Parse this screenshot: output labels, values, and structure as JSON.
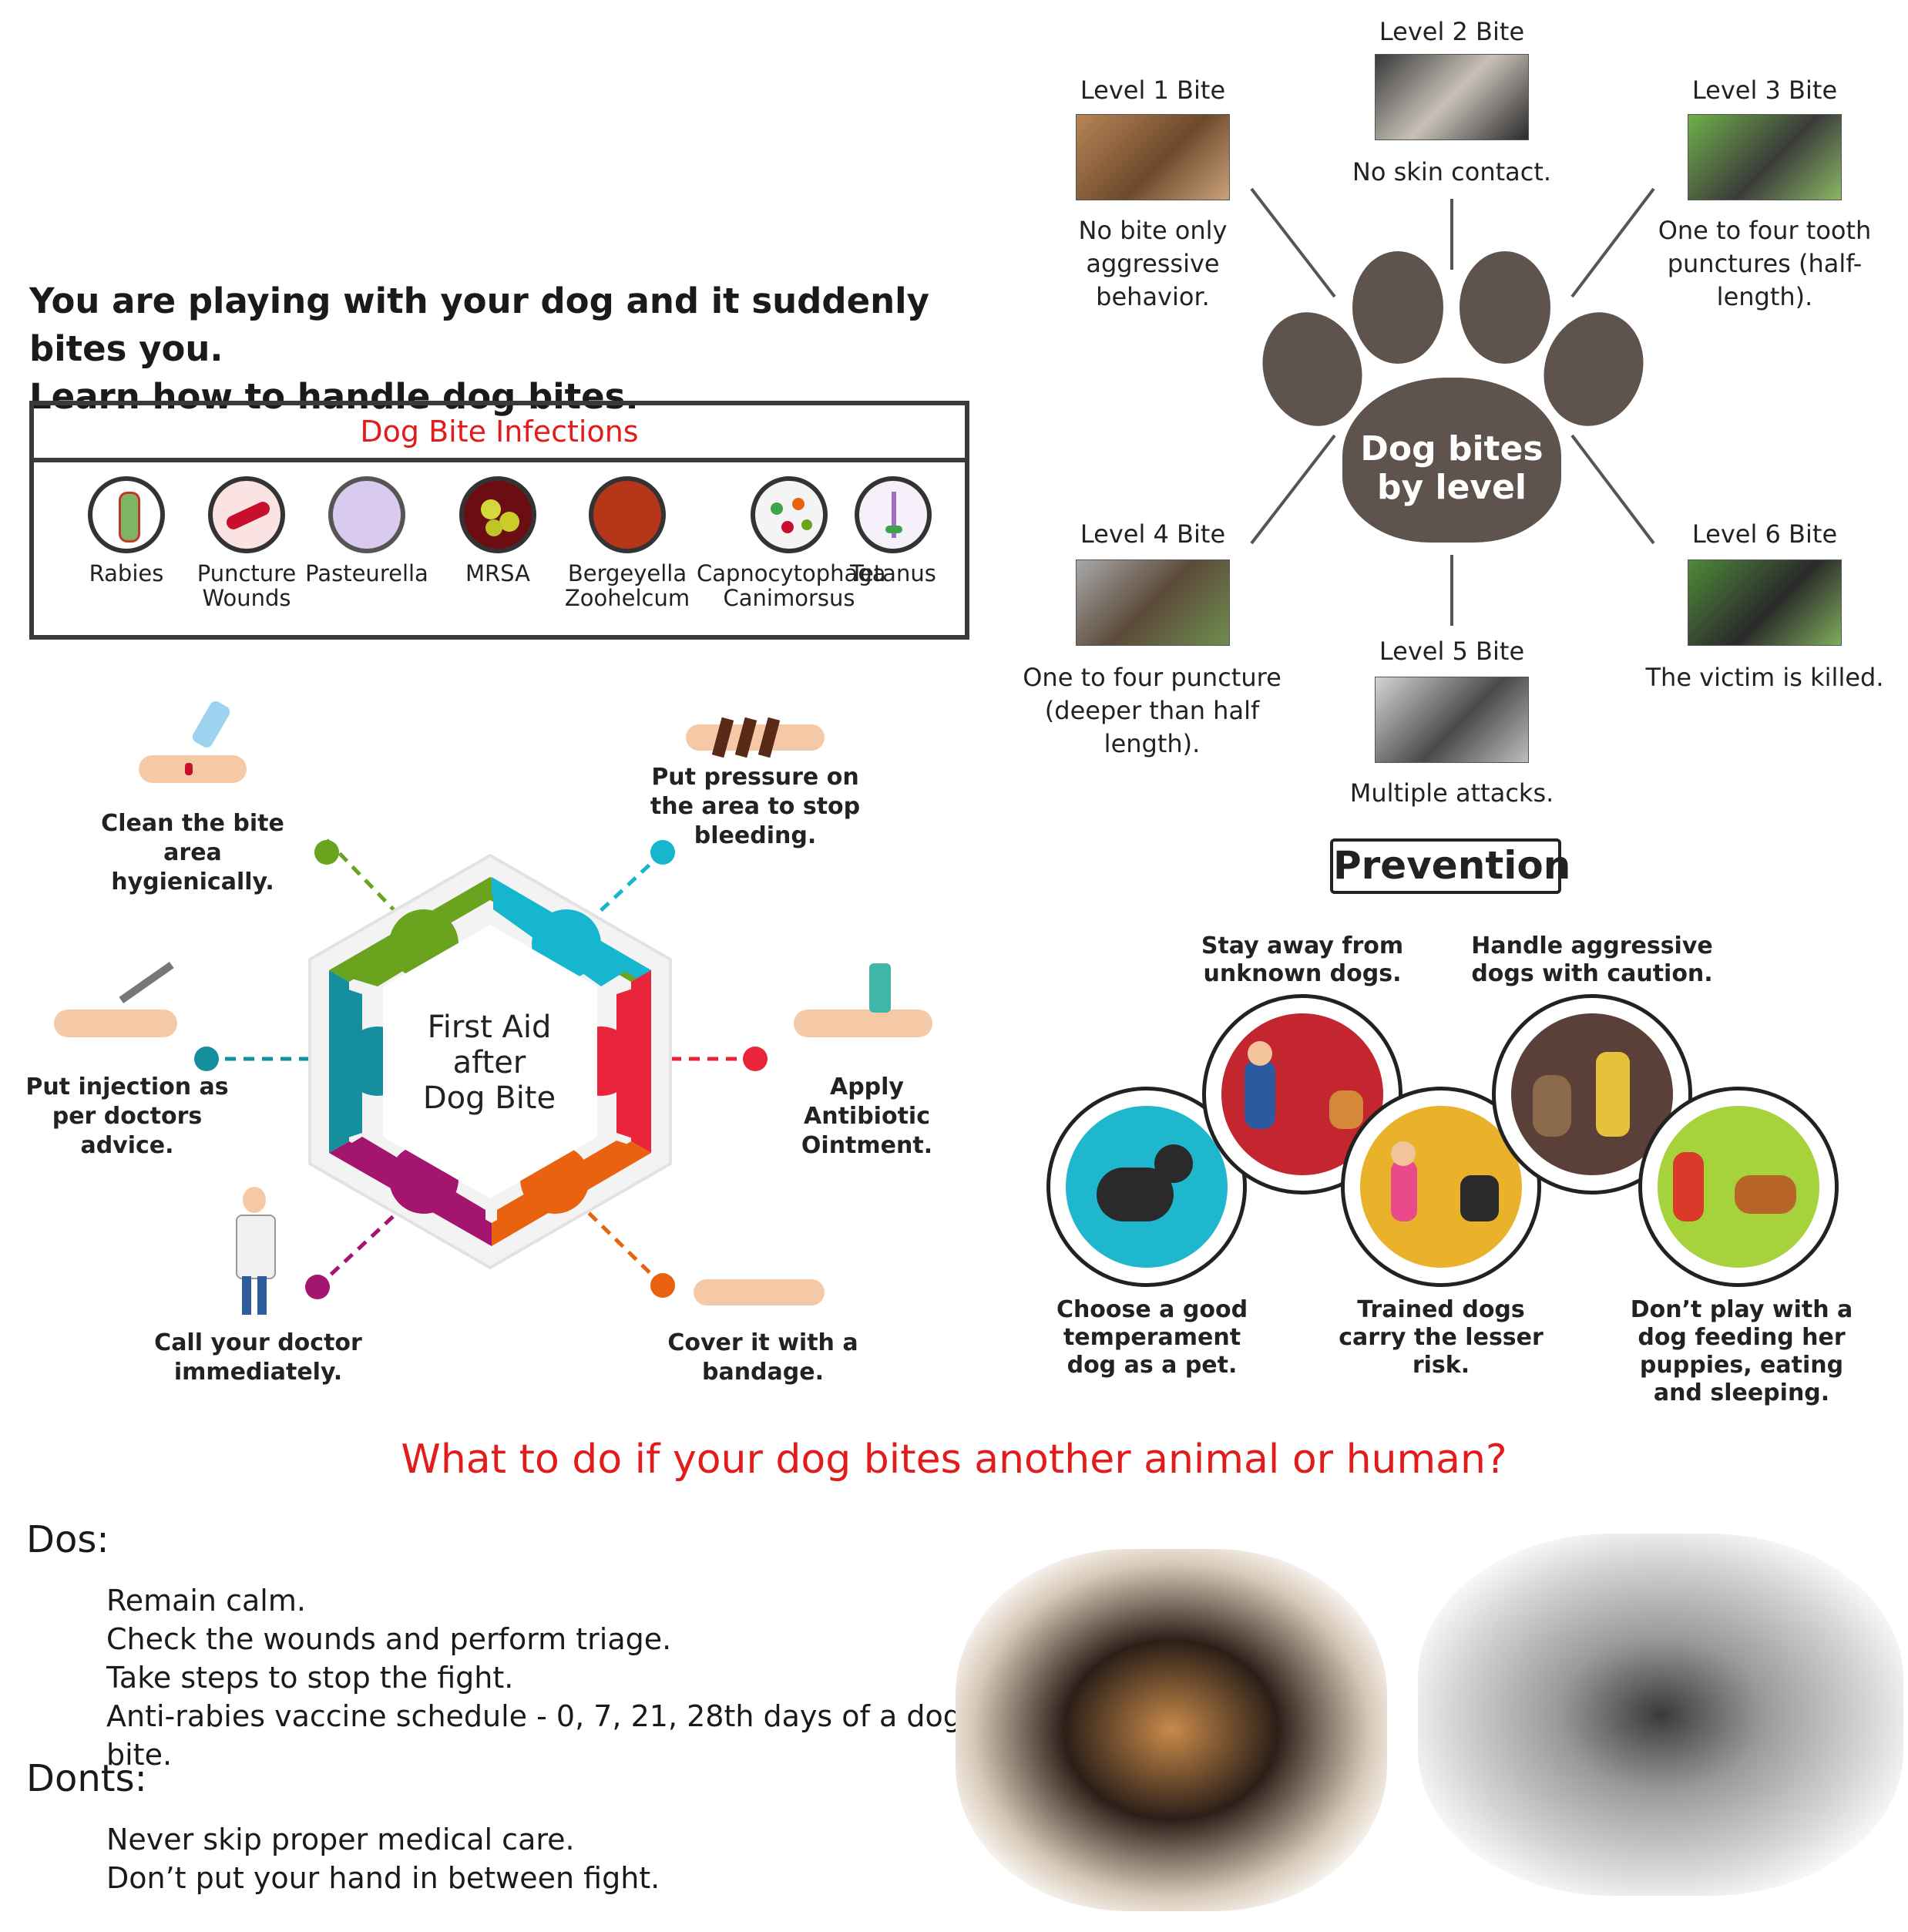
{
  "intro": {
    "line1": "You are playing with your dog and it suddenly bites you.",
    "line2": "Learn how to handle dog bites."
  },
  "infections": {
    "title": "Dog Bite Infections",
    "items": [
      {
        "label1": "Rabies",
        "label2": "",
        "icon": "rabies-virus-icon",
        "color": "#8fbf6a"
      },
      {
        "label1": "Puncture",
        "label2": "Wounds",
        "icon": "puncture-wound-icon",
        "color": "#c8102e"
      },
      {
        "label1": "Pasteurella",
        "label2": "",
        "icon": "pasteurella-icon",
        "color": "#c9b8e0"
      },
      {
        "label1": "MRSA",
        "label2": "",
        "icon": "mrsa-icon",
        "color": "#c8d424"
      },
      {
        "label1": "Bergeyella",
        "label2": "Zoohelcum",
        "icon": "bergeyella-icon",
        "color": "#b6361a"
      },
      {
        "label1": "Capnocytophaga",
        "label2": "Canimorsus",
        "icon": "capnocytophaga-icon",
        "color": "#3fa34d"
      },
      {
        "label1": "Tetanus",
        "label2": "",
        "icon": "tetanus-icon",
        "color": "#a070c0"
      }
    ]
  },
  "first_aid": {
    "center_line1": "First Aid",
    "center_line2": "after",
    "center_line3": "Dog Bite",
    "steps": {
      "clean": "Clean the bite area hygienically.",
      "pressure": "Put pressure on the area to stop bleeding.",
      "ointment": "Apply Antibiotic Ointment.",
      "bandage": "Cover it with a bandage.",
      "doctor": "Call your doctor immediately.",
      "injection": "Put injection as per doctors advice."
    },
    "colors": {
      "green": "#6aa41e",
      "cyan": "#17b6cf",
      "red": "#e8253a",
      "orange": "#e8620f",
      "magenta": "#a4156f",
      "teal": "#158f9d"
    }
  },
  "levels": {
    "center_line1": "Dog bites",
    "center_line2": "by level",
    "paw_color": "#5e534d",
    "items": [
      {
        "title": "Level 1 Bite",
        "desc": "No bite only aggressive behavior."
      },
      {
        "title": "Level 2 Bite",
        "desc": "No skin contact."
      },
      {
        "title": "Level 3 Bite",
        "desc": "One to four tooth punctures (half-length)."
      },
      {
        "title": "Level 4 Bite",
        "desc": "One to four puncture (deeper than half length)."
      },
      {
        "title": "Level 5 Bite",
        "desc": "Multiple attacks."
      },
      {
        "title": "Level 6 Bite",
        "desc": "The victim is killed."
      }
    ]
  },
  "prevention": {
    "title": "Prevention",
    "items": [
      {
        "label": "Stay away from unknown dogs.",
        "color": "#c42630"
      },
      {
        "label": "Handle aggressive dogs with caution.",
        "color": "#5a4038"
      },
      {
        "label": "Choose a good temperament dog as a pet.",
        "color": "#1fb7cd"
      },
      {
        "label": "Trained dogs carry the lesser risk.",
        "color": "#eab12a"
      },
      {
        "label": "Don’t play with a dog feeding her puppies, eating and sleeping.",
        "color": "#a6d33b"
      }
    ]
  },
  "dog_bites_other": {
    "question": "What to do if your dog bites another animal or human?",
    "question_color": "#e21b1b",
    "dos_title": "Dos:",
    "dos": [
      "Remain calm.",
      "Check the wounds and perform triage.",
      "Take steps to stop the fight.",
      "Anti-rabies vaccine schedule - 0, 7, 21, 28th days of a dog bite."
    ],
    "donts_title": "Donts:",
    "donts": [
      "Never skip proper medical care.",
      "Don’t put your hand in between fight."
    ]
  }
}
